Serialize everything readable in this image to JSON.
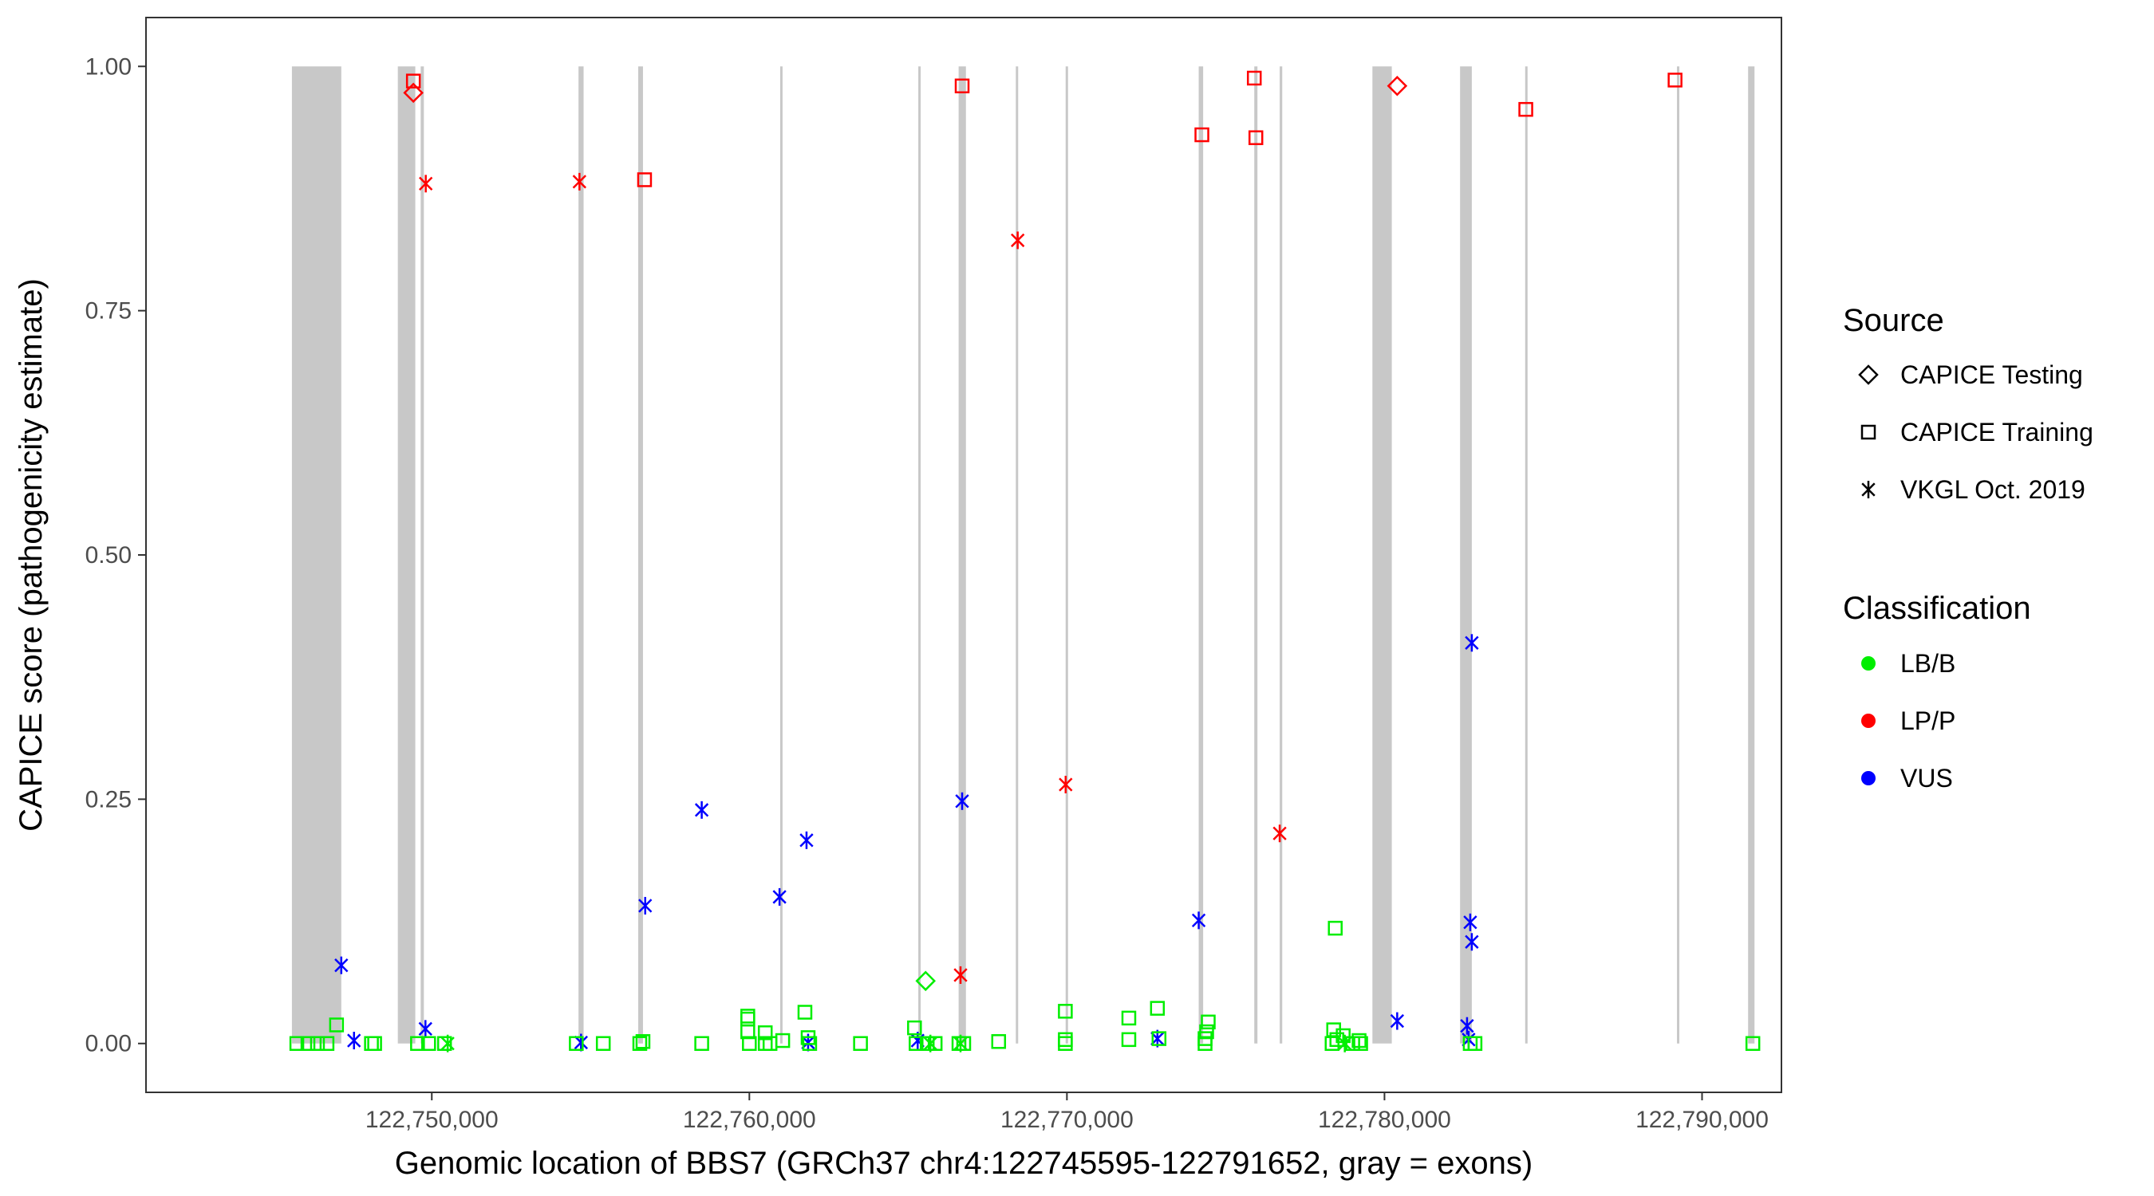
{
  "chart_data": {
    "type": "scatter",
    "xlabel": "Genomic location of BBS7 (GRCh37 chr4:122745595-122791652, gray = exons)",
    "ylabel": "CAPICE score (pathogenicity estimate)",
    "xlim": [
      122741000,
      122792500
    ],
    "ylim": [
      -0.05,
      1.05
    ],
    "x_ticks": [
      122750000,
      122760000,
      122770000,
      122780000,
      122790000
    ],
    "x_tick_labels": [
      "122,750,000",
      "122,760,000",
      "122,770,000",
      "122,780,000",
      "122,790,000"
    ],
    "y_ticks": [
      0,
      0.25,
      0.5,
      0.75,
      1.0
    ],
    "y_tick_labels": [
      "0.00",
      "0.25",
      "0.50",
      "0.75",
      "1.00"
    ],
    "grid": false,
    "exons": [
      [
        122745595,
        122747150
      ],
      [
        122748930,
        122749480
      ],
      [
        122749650,
        122749750
      ],
      [
        122754620,
        122754780
      ],
      [
        122756500,
        122756650
      ],
      [
        122760970,
        122761030
      ],
      [
        122765320,
        122765390
      ],
      [
        122766590,
        122766820
      ],
      [
        122768390,
        122768460
      ],
      [
        122769960,
        122770030
      ],
      [
        122774150,
        122774290
      ],
      [
        122775900,
        122776000
      ],
      [
        122776700,
        122776780
      ],
      [
        122779620,
        122780230
      ],
      [
        122782380,
        122782750
      ],
      [
        122784430,
        122784500
      ],
      [
        122789210,
        122789280
      ],
      [
        122791450,
        122791652
      ]
    ],
    "legend_position": "right",
    "legend": {
      "source_title": "Source",
      "source_items": [
        {
          "label": "CAPICE Testing",
          "shape": "diamond"
        },
        {
          "label": "CAPICE Training",
          "shape": "square"
        },
        {
          "label": "VKGL Oct. 2019",
          "shape": "asterisk"
        }
      ],
      "class_title": "Classification",
      "class_items": [
        {
          "label": "LB/B",
          "color": "#00ee00"
        },
        {
          "label": "LP/P",
          "color": "#ff0000"
        },
        {
          "label": "VUS",
          "color": "#0000ff"
        }
      ]
    },
    "colors": {
      "LB/B": "#00ee00",
      "LP/P": "#ff0000",
      "VUS": "#0000ff",
      "exon": "#c8c8c8"
    },
    "points": [
      {
        "x": 122749420,
        "y": 0.985,
        "source": "CAPICE Training",
        "class": "LP/P"
      },
      {
        "x": 122749420,
        "y": 0.973,
        "source": "CAPICE Testing",
        "class": "LP/P"
      },
      {
        "x": 122749810,
        "y": 0.88,
        "source": "VKGL Oct. 2019",
        "class": "LP/P"
      },
      {
        "x": 122754650,
        "y": 0.882,
        "source": "VKGL Oct. 2019",
        "class": "LP/P"
      },
      {
        "x": 122756700,
        "y": 0.884,
        "source": "CAPICE Training",
        "class": "LP/P"
      },
      {
        "x": 122766700,
        "y": 0.98,
        "source": "CAPICE Training",
        "class": "LP/P"
      },
      {
        "x": 122768450,
        "y": 0.822,
        "source": "VKGL Oct. 2019",
        "class": "LP/P"
      },
      {
        "x": 122774250,
        "y": 0.93,
        "source": "CAPICE Training",
        "class": "LP/P"
      },
      {
        "x": 122775900,
        "y": 0.988,
        "source": "CAPICE Training",
        "class": "LP/P"
      },
      {
        "x": 122775950,
        "y": 0.927,
        "source": "CAPICE Training",
        "class": "LP/P"
      },
      {
        "x": 122780400,
        "y": 0.98,
        "source": "CAPICE Testing",
        "class": "LP/P"
      },
      {
        "x": 122784450,
        "y": 0.956,
        "source": "CAPICE Training",
        "class": "LP/P"
      },
      {
        "x": 122789150,
        "y": 0.986,
        "source": "CAPICE Training",
        "class": "LP/P"
      },
      {
        "x": 122769960,
        "y": 0.265,
        "source": "VKGL Oct. 2019",
        "class": "LP/P"
      },
      {
        "x": 122776700,
        "y": 0.215,
        "source": "VKGL Oct. 2019",
        "class": "LP/P"
      },
      {
        "x": 122766650,
        "y": 0.07,
        "source": "VKGL Oct. 2019",
        "class": "LP/P"
      },
      {
        "x": 122747150,
        "y": 0.08,
        "source": "VKGL Oct. 2019",
        "class": "VUS"
      },
      {
        "x": 122747550,
        "y": 0.003,
        "source": "VKGL Oct. 2019",
        "class": "VUS"
      },
      {
        "x": 122749800,
        "y": 0.015,
        "source": "VKGL Oct. 2019",
        "class": "VUS"
      },
      {
        "x": 122754700,
        "y": 0.001,
        "source": "VKGL Oct. 2019",
        "class": "VUS"
      },
      {
        "x": 122756720,
        "y": 0.141,
        "source": "VKGL Oct. 2019",
        "class": "VUS"
      },
      {
        "x": 122758500,
        "y": 0.239,
        "source": "VKGL Oct. 2019",
        "class": "VUS"
      },
      {
        "x": 122760950,
        "y": 0.15,
        "source": "VKGL Oct. 2019",
        "class": "VUS"
      },
      {
        "x": 122761800,
        "y": 0.208,
        "source": "VKGL Oct. 2019",
        "class": "VUS"
      },
      {
        "x": 122761850,
        "y": 0.001,
        "source": "VKGL Oct. 2019",
        "class": "VUS"
      },
      {
        "x": 122765300,
        "y": 0.003,
        "source": "VKGL Oct. 2019",
        "class": "VUS"
      },
      {
        "x": 122766700,
        "y": 0.248,
        "source": "VKGL Oct. 2019",
        "class": "VUS"
      },
      {
        "x": 122772850,
        "y": 0.005,
        "source": "VKGL Oct. 2019",
        "class": "VUS"
      },
      {
        "x": 122774150,
        "y": 0.126,
        "source": "VKGL Oct. 2019",
        "class": "VUS"
      },
      {
        "x": 122780400,
        "y": 0.023,
        "source": "VKGL Oct. 2019",
        "class": "VUS"
      },
      {
        "x": 122782750,
        "y": 0.41,
        "source": "VKGL Oct. 2019",
        "class": "VUS"
      },
      {
        "x": 122782700,
        "y": 0.124,
        "source": "VKGL Oct. 2019",
        "class": "VUS"
      },
      {
        "x": 122782750,
        "y": 0.104,
        "source": "VKGL Oct. 2019",
        "class": "VUS"
      },
      {
        "x": 122782600,
        "y": 0.018,
        "source": "VKGL Oct. 2019",
        "class": "VUS"
      },
      {
        "x": 122782650,
        "y": 0.004,
        "source": "VKGL Oct. 2019",
        "class": "VUS"
      },
      {
        "x": 122765550,
        "y": 0.064,
        "source": "CAPICE Testing",
        "class": "LB/B"
      },
      {
        "x": 122778450,
        "y": 0.118,
        "source": "CAPICE Training",
        "class": "LB/B"
      },
      {
        "x": 122747000,
        "y": 0.019,
        "source": "CAPICE Training",
        "class": "LB/B"
      },
      {
        "x": 122745750,
        "y": 0,
        "source": "CAPICE Training",
        "class": "LB/B"
      },
      {
        "x": 122746100,
        "y": 0,
        "source": "CAPICE Training",
        "class": "LB/B"
      },
      {
        "x": 122746400,
        "y": 0,
        "source": "CAPICE Training",
        "class": "LB/B"
      },
      {
        "x": 122746700,
        "y": 0,
        "source": "CAPICE Training",
        "class": "LB/B"
      },
      {
        "x": 122748100,
        "y": 0,
        "source": "CAPICE Training",
        "class": "LB/B"
      },
      {
        "x": 122748200,
        "y": 0,
        "source": "CAPICE Training",
        "class": "LB/B"
      },
      {
        "x": 122749550,
        "y": 0,
        "source": "CAPICE Training",
        "class": "LB/B"
      },
      {
        "x": 122749900,
        "y": 0,
        "source": "CAPICE Training",
        "class": "LB/B"
      },
      {
        "x": 122750400,
        "y": 0,
        "source": "CAPICE Training",
        "class": "LB/B"
      },
      {
        "x": 122750500,
        "y": 0,
        "source": "VKGL Oct. 2019",
        "class": "LB/B"
      },
      {
        "x": 122754550,
        "y": 0,
        "source": "CAPICE Training",
        "class": "LB/B"
      },
      {
        "x": 122755400,
        "y": 0,
        "source": "CAPICE Training",
        "class": "LB/B"
      },
      {
        "x": 122756550,
        "y": 0,
        "source": "CAPICE Training",
        "class": "LB/B"
      },
      {
        "x": 122756650,
        "y": 0.002,
        "source": "CAPICE Training",
        "class": "LB/B"
      },
      {
        "x": 122758500,
        "y": 0,
        "source": "CAPICE Training",
        "class": "LB/B"
      },
      {
        "x": 122759950,
        "y": 0.028,
        "source": "CAPICE Training",
        "class": "LB/B"
      },
      {
        "x": 122759950,
        "y": 0.025,
        "source": "CAPICE Training",
        "class": "LB/B"
      },
      {
        "x": 122759950,
        "y": 0.012,
        "source": "CAPICE Training",
        "class": "LB/B"
      },
      {
        "x": 122760000,
        "y": 0,
        "source": "CAPICE Training",
        "class": "LB/B"
      },
      {
        "x": 122760500,
        "y": 0.011,
        "source": "CAPICE Training",
        "class": "LB/B"
      },
      {
        "x": 122760500,
        "y": 0,
        "source": "CAPICE Training",
        "class": "LB/B"
      },
      {
        "x": 122760650,
        "y": 0,
        "source": "CAPICE Training",
        "class": "LB/B"
      },
      {
        "x": 122761050,
        "y": 0.003,
        "source": "CAPICE Training",
        "class": "LB/B"
      },
      {
        "x": 122761750,
        "y": 0.032,
        "source": "CAPICE Training",
        "class": "LB/B"
      },
      {
        "x": 122761850,
        "y": 0.006,
        "source": "CAPICE Training",
        "class": "LB/B"
      },
      {
        "x": 122761900,
        "y": 0,
        "source": "CAPICE Training",
        "class": "LB/B"
      },
      {
        "x": 122763500,
        "y": 0,
        "source": "CAPICE Training",
        "class": "LB/B"
      },
      {
        "x": 122765200,
        "y": 0.016,
        "source": "CAPICE Training",
        "class": "LB/B"
      },
      {
        "x": 122765250,
        "y": 0,
        "source": "CAPICE Training",
        "class": "LB/B"
      },
      {
        "x": 122765600,
        "y": 0,
        "source": "CAPICE Training",
        "class": "LB/B"
      },
      {
        "x": 122765700,
        "y": 0,
        "source": "VKGL Oct. 2019",
        "class": "LB/B"
      },
      {
        "x": 122765850,
        "y": 0,
        "source": "CAPICE Training",
        "class": "LB/B"
      },
      {
        "x": 122766600,
        "y": 0,
        "source": "CAPICE Training",
        "class": "LB/B"
      },
      {
        "x": 122766650,
        "y": 0,
        "source": "VKGL Oct. 2019",
        "class": "LB/B"
      },
      {
        "x": 122766750,
        "y": 0,
        "source": "CAPICE Training",
        "class": "LB/B"
      },
      {
        "x": 122767850,
        "y": 0.002,
        "source": "CAPICE Training",
        "class": "LB/B"
      },
      {
        "x": 122769950,
        "y": 0.033,
        "source": "CAPICE Training",
        "class": "LB/B"
      },
      {
        "x": 122769950,
        "y": 0.004,
        "source": "CAPICE Training",
        "class": "LB/B"
      },
      {
        "x": 122769950,
        "y": 0,
        "source": "CAPICE Training",
        "class": "LB/B"
      },
      {
        "x": 122771950,
        "y": 0.026,
        "source": "CAPICE Training",
        "class": "LB/B"
      },
      {
        "x": 122771950,
        "y": 0.004,
        "source": "CAPICE Training",
        "class": "LB/B"
      },
      {
        "x": 122772850,
        "y": 0.036,
        "source": "CAPICE Training",
        "class": "LB/B"
      },
      {
        "x": 122772900,
        "y": 0.005,
        "source": "CAPICE Training",
        "class": "LB/B"
      },
      {
        "x": 122774450,
        "y": 0.022,
        "source": "CAPICE Training",
        "class": "LB/B"
      },
      {
        "x": 122774400,
        "y": 0.012,
        "source": "CAPICE Training",
        "class": "LB/B"
      },
      {
        "x": 122774350,
        "y": 0.005,
        "source": "CAPICE Training",
        "class": "LB/B"
      },
      {
        "x": 122774350,
        "y": 0,
        "source": "CAPICE Training",
        "class": "LB/B"
      },
      {
        "x": 122778350,
        "y": 0,
        "source": "CAPICE Training",
        "class": "LB/B"
      },
      {
        "x": 122778400,
        "y": 0.014,
        "source": "CAPICE Training",
        "class": "LB/B"
      },
      {
        "x": 122778500,
        "y": 0.004,
        "source": "CAPICE Training",
        "class": "LB/B"
      },
      {
        "x": 122778700,
        "y": 0.008,
        "source": "CAPICE Training",
        "class": "LB/B"
      },
      {
        "x": 122778750,
        "y": 0,
        "source": "VKGL Oct. 2019",
        "class": "LB/B"
      },
      {
        "x": 122779000,
        "y": 0,
        "source": "CAPICE Training",
        "class": "LB/B"
      },
      {
        "x": 122779200,
        "y": 0.003,
        "source": "CAPICE Training",
        "class": "LB/B"
      },
      {
        "x": 122779250,
        "y": 0,
        "source": "CAPICE Training",
        "class": "LB/B"
      },
      {
        "x": 122782700,
        "y": 0,
        "source": "CAPICE Training",
        "class": "LB/B"
      },
      {
        "x": 122782850,
        "y": 0,
        "source": "CAPICE Training",
        "class": "LB/B"
      },
      {
        "x": 122791600,
        "y": 0,
        "source": "CAPICE Training",
        "class": "LB/B"
      }
    ]
  }
}
